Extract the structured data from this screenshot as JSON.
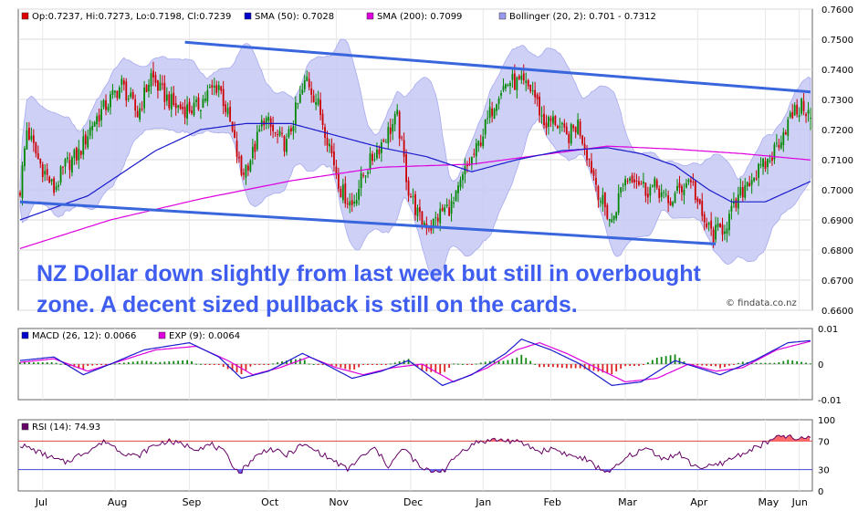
{
  "chart_data": [
    {
      "type": "candlestick",
      "panel": "price",
      "legend": [
        {
          "label": "Op:0.7237, Hi:0.7273, Lo:0.7198, Cl:0.7239",
          "color": "#dd0000"
        },
        {
          "label": "SMA (50): 0.7028",
          "color": "#0000cc"
        },
        {
          "label": "SMA (200): 0.7099",
          "color": "#dd00dd"
        },
        {
          "label": "Bollinger (20, 2): 0.701 - 0.7312",
          "color": "#9999ee"
        }
      ],
      "y_ticks": [
        "0.7600",
        "0.7500",
        "0.7400",
        "0.7300",
        "0.7200",
        "0.7100",
        "0.7000",
        "0.6900",
        "0.6800",
        "0.6700",
        "0.6600"
      ],
      "ylim": [
        0.66,
        0.76
      ],
      "x_ticks": [
        "Jul",
        "Aug",
        "Sep",
        "Oct",
        "Nov",
        "Dec",
        "Jan",
        "Feb",
        "Mar",
        "Apr",
        "May",
        "Jun"
      ],
      "close_anchors": [
        [
          0,
          0.7
        ],
        [
          3,
          0.72
        ],
        [
          8,
          0.71
        ],
        [
          15,
          0.7
        ],
        [
          20,
          0.708
        ],
        [
          26,
          0.712
        ],
        [
          32,
          0.722
        ],
        [
          38,
          0.728
        ],
        [
          45,
          0.735
        ],
        [
          52,
          0.725
        ],
        [
          58,
          0.738
        ],
        [
          62,
          0.733
        ],
        [
          68,
          0.728
        ],
        [
          72,
          0.727
        ],
        [
          78,
          0.727
        ],
        [
          83,
          0.732
        ],
        [
          88,
          0.735
        ],
        [
          93,
          0.722
        ],
        [
          98,
          0.705
        ],
        [
          103,
          0.712
        ],
        [
          108,
          0.724
        ],
        [
          113,
          0.718
        ],
        [
          118,
          0.715
        ],
        [
          122,
          0.726
        ],
        [
          127,
          0.737
        ],
        [
          132,
          0.728
        ],
        [
          137,
          0.715
        ],
        [
          142,
          0.7
        ],
        [
          147,
          0.695
        ],
        [
          152,
          0.705
        ],
        [
          157,
          0.712
        ],
        [
          162,
          0.718
        ],
        [
          167,
          0.724
        ],
        [
          172,
          0.7
        ],
        [
          177,
          0.69
        ],
        [
          182,
          0.688
        ],
        [
          187,
          0.693
        ],
        [
          192,
          0.695
        ],
        [
          197,
          0.706
        ],
        [
          202,
          0.713
        ],
        [
          207,
          0.723
        ],
        [
          212,
          0.733
        ],
        [
          217,
          0.736
        ],
        [
          222,
          0.735
        ],
        [
          227,
          0.733
        ],
        [
          232,
          0.722
        ],
        [
          237,
          0.723
        ],
        [
          242,
          0.717
        ],
        [
          247,
          0.722
        ],
        [
          252,
          0.71
        ],
        [
          257,
          0.697
        ],
        [
          262,
          0.689
        ],
        [
          267,
          0.703
        ],
        [
          272,
          0.705
        ],
        [
          277,
          0.7
        ],
        [
          282,
          0.701
        ],
        [
          287,
          0.695
        ],
        [
          292,
          0.7
        ],
        [
          297,
          0.704
        ],
        [
          302,
          0.69
        ],
        [
          307,
          0.685
        ],
        [
          312,
          0.688
        ],
        [
          317,
          0.695
        ],
        [
          322,
          0.703
        ],
        [
          327,
          0.706
        ],
        [
          332,
          0.71
        ],
        [
          337,
          0.718
        ],
        [
          342,
          0.725
        ],
        [
          347,
          0.728
        ],
        [
          350,
          0.7239
        ]
      ],
      "sma50_anchors": [
        [
          0,
          0.69
        ],
        [
          30,
          0.698
        ],
        [
          60,
          0.713
        ],
        [
          80,
          0.72
        ],
        [
          100,
          0.722
        ],
        [
          120,
          0.722
        ],
        [
          140,
          0.718
        ],
        [
          160,
          0.714
        ],
        [
          180,
          0.711
        ],
        [
          200,
          0.706
        ],
        [
          220,
          0.71
        ],
        [
          240,
          0.713
        ],
        [
          260,
          0.714
        ],
        [
          275,
          0.712
        ],
        [
          290,
          0.708
        ],
        [
          305,
          0.7
        ],
        [
          315,
          0.696
        ],
        [
          330,
          0.696
        ],
        [
          350,
          0.7028
        ]
      ],
      "sma200_anchors": [
        [
          0,
          0.6805
        ],
        [
          40,
          0.69
        ],
        [
          80,
          0.697
        ],
        [
          120,
          0.703
        ],
        [
          160,
          0.7075
        ],
        [
          200,
          0.7085
        ],
        [
          230,
          0.7115
        ],
        [
          260,
          0.7145
        ],
        [
          290,
          0.7135
        ],
        [
          320,
          0.712
        ],
        [
          350,
          0.7099
        ]
      ],
      "channel_upper": [
        [
          73,
          0.749
        ],
        [
          350,
          0.7325
        ]
      ],
      "channel_lower": [
        [
          0,
          0.696
        ],
        [
          308,
          0.682
        ]
      ],
      "annotation_lines": [
        "NZ Dollar down slightly from last week but still in overbought",
        "zone. A decent sized pullback is still on the cards."
      ],
      "source": "© findata.co.nz"
    },
    {
      "type": "line+bar",
      "panel": "macd",
      "legend": [
        {
          "label": "MACD (26, 12): 0.0066",
          "color": "#0000cc"
        },
        {
          "label": "EXP (9): 0.0064",
          "color": "#dd00dd"
        }
      ],
      "y_ticks": [
        "0.01",
        "0",
        "-0.01"
      ],
      "ylim": [
        -0.01,
        0.01
      ],
      "macd_anchors": [
        [
          0,
          0.001
        ],
        [
          15,
          0.002
        ],
        [
          28,
          -0.003
        ],
        [
          40,
          0.0
        ],
        [
          55,
          0.004
        ],
        [
          75,
          0.006
        ],
        [
          88,
          0.002
        ],
        [
          98,
          -0.004
        ],
        [
          110,
          -0.002
        ],
        [
          125,
          0.003
        ],
        [
          135,
          0.0
        ],
        [
          147,
          -0.004
        ],
        [
          160,
          -0.002
        ],
        [
          172,
          0.001
        ],
        [
          187,
          -0.006
        ],
        [
          200,
          -0.003
        ],
        [
          215,
          0.003
        ],
        [
          222,
          0.007
        ],
        [
          235,
          0.004
        ],
        [
          248,
          0.0
        ],
        [
          262,
          -0.006
        ],
        [
          275,
          -0.005
        ],
        [
          290,
          0.001
        ],
        [
          300,
          -0.001
        ],
        [
          310,
          -0.003
        ],
        [
          325,
          0.001
        ],
        [
          340,
          0.006
        ],
        [
          350,
          0.0066
        ]
      ],
      "signal_anchors": [
        [
          0,
          0.0005
        ],
        [
          15,
          0.0015
        ],
        [
          30,
          -0.002
        ],
        [
          45,
          0.001
        ],
        [
          60,
          0.004
        ],
        [
          78,
          0.005
        ],
        [
          92,
          0.001
        ],
        [
          103,
          -0.003
        ],
        [
          115,
          -0.001
        ],
        [
          128,
          0.002
        ],
        [
          140,
          -0.001
        ],
        [
          152,
          -0.003
        ],
        [
          165,
          -0.001
        ],
        [
          178,
          0.0
        ],
        [
          192,
          -0.005
        ],
        [
          207,
          -0.001
        ],
        [
          220,
          0.004
        ],
        [
          230,
          0.006
        ],
        [
          242,
          0.003
        ],
        [
          255,
          -0.001
        ],
        [
          268,
          -0.005
        ],
        [
          282,
          -0.004
        ],
        [
          296,
          0.0
        ],
        [
          308,
          -0.002
        ],
        [
          320,
          -0.001
        ],
        [
          335,
          0.004
        ],
        [
          350,
          0.0064
        ]
      ]
    },
    {
      "type": "line",
      "panel": "rsi",
      "legend": [
        {
          "label": "RSI (14): 74.93",
          "color": "#660066"
        }
      ],
      "y_ticks": [
        "100",
        "70",
        "30",
        "0"
      ],
      "ylim": [
        0,
        100
      ],
      "overbought": 70,
      "oversold": 30,
      "rsi_anchors": [
        [
          0,
          65
        ],
        [
          8,
          55
        ],
        [
          15,
          45
        ],
        [
          20,
          40
        ],
        [
          26,
          50
        ],
        [
          32,
          60
        ],
        [
          38,
          70
        ],
        [
          45,
          55
        ],
        [
          52,
          48
        ],
        [
          58,
          62
        ],
        [
          65,
          70
        ],
        [
          72,
          65
        ],
        [
          78,
          60
        ],
        [
          85,
          65
        ],
        [
          90,
          55
        ],
        [
          97,
          25
        ],
        [
          103,
          45
        ],
        [
          110,
          60
        ],
        [
          118,
          50
        ],
        [
          125,
          65
        ],
        [
          132,
          55
        ],
        [
          140,
          40
        ],
        [
          145,
          30
        ],
        [
          150,
          45
        ],
        [
          157,
          60
        ],
        [
          163,
          35
        ],
        [
          170,
          60
        ],
        [
          178,
          30
        ],
        [
          183,
          28
        ],
        [
          188,
          30
        ],
        [
          195,
          55
        ],
        [
          202,
          68
        ],
        [
          210,
          72
        ],
        [
          218,
          70
        ],
        [
          224,
          65
        ],
        [
          230,
          55
        ],
        [
          236,
          60
        ],
        [
          243,
          50
        ],
        [
          250,
          45
        ],
        [
          257,
          30
        ],
        [
          262,
          28
        ],
        [
          270,
          50
        ],
        [
          278,
          60
        ],
        [
          285,
          45
        ],
        [
          292,
          52
        ],
        [
          297,
          38
        ],
        [
          303,
          32
        ],
        [
          310,
          38
        ],
        [
          318,
          50
        ],
        [
          325,
          60
        ],
        [
          332,
          70
        ],
        [
          338,
          78
        ],
        [
          344,
          72
        ],
        [
          350,
          74.93
        ]
      ]
    }
  ]
}
